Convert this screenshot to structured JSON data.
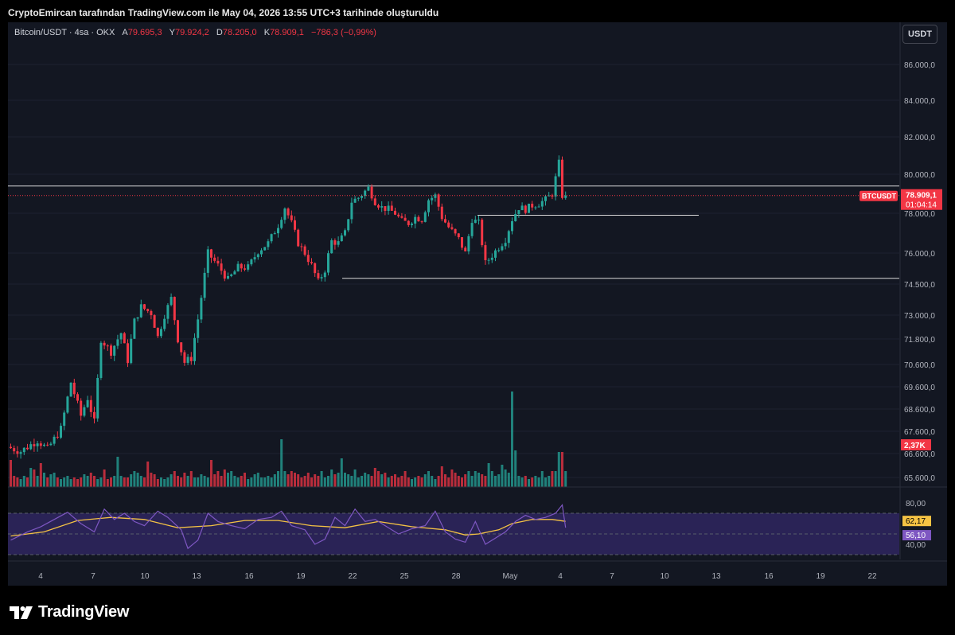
{
  "caption": "CryptoEmircan tarafından TradingView.com ile May 04, 2026 13:55 UTC+3 tarihinde oluşturuldu",
  "legend": {
    "symbol": "Bitcoin/USDT · 4sa · OKX",
    "open_label": "A",
    "open": "79.695,3",
    "high_label": "Y",
    "high": "79.924,2",
    "low_label": "D",
    "low": "78.205,0",
    "close_label": "K",
    "close": "78.909,1",
    "change": "−786,3 (−0,99%)"
  },
  "currency_button": "USDT",
  "brand": "TradingView",
  "colors": {
    "background": "#131722",
    "up": "#26a69a",
    "down": "#f23645",
    "rsi": "#7e57c2",
    "rsi_ma": "#f5c344"
  },
  "chart_data": {
    "type": "candlestick",
    "symbol": "BTCUSDT",
    "price_ticks": [
      "86.000,0",
      "84.000,0",
      "82.000,0",
      "80.000,0",
      "78.000,0",
      "76.000,0",
      "74.500,0",
      "73.000,0",
      "71.800,0",
      "70.600,0",
      "69.600,0",
      "68.600,0",
      "67.600,0",
      "66.600,0",
      "65.600,0"
    ],
    "price_tick_values": [
      86000,
      84000,
      82000,
      80000,
      78000,
      76000,
      74500,
      73000,
      71800,
      70600,
      69600,
      68600,
      67600,
      66600,
      65600
    ],
    "x_ticks": [
      "4",
      "7",
      "10",
      "13",
      "16",
      "19",
      "22",
      "25",
      "28",
      "May",
      "4",
      "7",
      "10",
      "13",
      "16",
      "19",
      "22"
    ],
    "price_label": {
      "name": "BTCUSDT",
      "value": "78.909,1",
      "countdown": "01:04:14",
      "price": 78909.1
    },
    "volume_label": "2,37K",
    "horizontal_levels": [
      {
        "price": 79400,
        "span": "full"
      },
      {
        "price": 77900,
        "span": "segment"
      },
      {
        "price": 74780,
        "span": "segment"
      }
    ],
    "path": [
      [
        0,
        66900
      ],
      [
        4,
        66700
      ],
      [
        9,
        67200
      ],
      [
        12,
        66800
      ],
      [
        16,
        67700
      ],
      [
        19,
        69800
      ],
      [
        22,
        68300
      ],
      [
        24,
        69100
      ],
      [
        26,
        68000
      ],
      [
        28,
        71800
      ],
      [
        31,
        71200
      ],
      [
        34,
        72100
      ],
      [
        36,
        70800
      ],
      [
        38,
        72700
      ],
      [
        40,
        73400
      ],
      [
        43,
        73100
      ],
      [
        45,
        71900
      ],
      [
        47,
        73000
      ],
      [
        49,
        73800
      ],
      [
        51,
        71800
      ],
      [
        53,
        70700
      ],
      [
        55,
        70900
      ],
      [
        57,
        72800
      ],
      [
        60,
        76000
      ],
      [
        63,
        75400
      ],
      [
        66,
        74700
      ],
      [
        69,
        75300
      ],
      [
        72,
        75300
      ],
      [
        75,
        76100
      ],
      [
        78,
        76500
      ],
      [
        81,
        77400
      ],
      [
        83,
        78300
      ],
      [
        85,
        77500
      ],
      [
        87,
        76500
      ],
      [
        89,
        76000
      ],
      [
        91,
        75400
      ],
      [
        93,
        74600
      ],
      [
        95,
        75200
      ],
      [
        97,
        76600
      ],
      [
        99,
        76500
      ],
      [
        101,
        77000
      ],
      [
        103,
        78600
      ],
      [
        105,
        78800
      ],
      [
        108,
        79300
      ],
      [
        110,
        78600
      ],
      [
        112,
        78300
      ],
      [
        114,
        78200
      ],
      [
        116,
        78000
      ],
      [
        118,
        77600
      ],
      [
        120,
        77500
      ],
      [
        122,
        77800
      ],
      [
        124,
        77700
      ],
      [
        126,
        78700
      ],
      [
        128,
        78900
      ],
      [
        130,
        77800
      ],
      [
        132,
        77300
      ],
      [
        135,
        76700
      ],
      [
        137,
        76000
      ],
      [
        139,
        77700
      ],
      [
        141,
        77500
      ],
      [
        143,
        75500
      ],
      [
        145,
        75900
      ],
      [
        147,
        76300
      ],
      [
        149,
        76700
      ],
      [
        151,
        77700
      ],
      [
        153,
        78300
      ],
      [
        155,
        78200
      ],
      [
        157,
        78400
      ],
      [
        159,
        78500
      ],
      [
        161,
        78700
      ],
      [
        163,
        79000
      ],
      [
        165,
        80600
      ],
      [
        166,
        78909
      ]
    ],
    "volume_values": [
      1.7,
      0.7,
      0.6,
      0.5,
      0.7,
      0.6,
      1.2,
      1.1,
      0.7,
      1.5,
      0.9,
      0.6,
      0.8,
      0.9,
      0.6,
      0.5,
      0.6,
      0.7,
      0.5,
      0.6,
      0.5,
      0.6,
      0.8,
      0.7,
      0.9,
      0.7,
      0.5,
      0.6,
      1.1,
      0.5,
      0.6,
      0.7,
      1.9,
      0.7,
      0.6,
      0.6,
      0.8,
      1.0,
      0.9,
      0.7,
      0.6,
      1.6,
      0.9,
      0.8,
      0.5,
      0.6,
      0.5,
      0.6,
      0.8,
      1.0,
      0.7,
      0.6,
      0.9,
      0.7,
      1.0,
      0.6,
      0.6,
      0.8,
      0.7,
      0.6,
      1.7,
      0.8,
      1.0,
      0.7,
      1.1,
      0.9,
      1.0,
      0.7,
      0.6,
      0.7,
      0.9,
      0.5,
      0.6,
      0.8,
      0.9,
      0.6,
      0.6,
      0.7,
      0.6,
      0.8,
      1.0,
      3.0,
      1.0,
      0.8,
      1.0,
      0.9,
      0.8,
      0.6,
      0.7,
      0.9,
      0.6,
      0.8,
      0.7,
      1.0,
      0.6,
      0.7,
      1.1,
      0.8,
      0.9,
      1.8,
      0.9,
      0.8,
      0.7,
      1.1,
      0.6,
      0.7,
      0.9,
      0.8,
      0.7,
      1.2,
      1.0,
      0.8,
      0.9,
      0.6,
      0.7,
      0.8,
      0.6,
      0.7,
      1.0,
      0.6,
      0.5,
      0.6,
      0.7,
      0.6,
      0.8,
      1.0,
      0.7,
      0.5,
      0.7,
      1.3,
      0.8,
      0.6,
      1.1,
      0.9,
      0.7,
      0.6,
      0.8,
      1.0,
      0.7,
      1.0,
      0.9,
      0.8,
      0.7,
      1.5,
      1.0,
      0.7,
      0.8,
      1.4,
      1.1,
      0.9,
      6.0,
      2.3,
      0.7,
      0.6,
      0.7,
      0.5,
      0.6,
      0.7,
      0.6,
      1.0,
      0.6,
      0.7,
      1.0,
      1.0,
      2.2,
      2.2,
      1.0
    ],
    "rsi": {
      "ticks": [
        "80,00",
        "40,00"
      ],
      "tick_values": [
        80,
        40
      ],
      "bands": [
        70,
        30
      ],
      "rsi_label": "56,10",
      "rsi_ma_label": "62,17",
      "rsi_path": [
        [
          0,
          44
        ],
        [
          5,
          52
        ],
        [
          9,
          57
        ],
        [
          13,
          64
        ],
        [
          17,
          71
        ],
        [
          21,
          60
        ],
        [
          25,
          52
        ],
        [
          28,
          74
        ],
        [
          31,
          64
        ],
        [
          34,
          70
        ],
        [
          37,
          62
        ],
        [
          40,
          58
        ],
        [
          44,
          72
        ],
        [
          47,
          66
        ],
        [
          51,
          54
        ],
        [
          53,
          36
        ],
        [
          56,
          44
        ],
        [
          59,
          70
        ],
        [
          62,
          62
        ],
        [
          66,
          58
        ],
        [
          70,
          55
        ],
        [
          74,
          64
        ],
        [
          78,
          66
        ],
        [
          81,
          72
        ],
        [
          84,
          58
        ],
        [
          88,
          54
        ],
        [
          91,
          40
        ],
        [
          94,
          45
        ],
        [
          97,
          66
        ],
        [
          100,
          58
        ],
        [
          103,
          74
        ],
        [
          106,
          62
        ],
        [
          109,
          64
        ],
        [
          112,
          58
        ],
        [
          116,
          50
        ],
        [
          120,
          55
        ],
        [
          124,
          58
        ],
        [
          127,
          72
        ],
        [
          130,
          52
        ],
        [
          133,
          45
        ],
        [
          136,
          42
        ],
        [
          139,
          62
        ],
        [
          142,
          40
        ],
        [
          145,
          46
        ],
        [
          148,
          52
        ],
        [
          151,
          62
        ],
        [
          154,
          68
        ],
        [
          157,
          64
        ],
        [
          160,
          66
        ],
        [
          163,
          70
        ],
        [
          165,
          78
        ],
        [
          166,
          56.1
        ]
      ],
      "ma_path": [
        [
          0,
          48
        ],
        [
          10,
          52
        ],
        [
          20,
          63
        ],
        [
          30,
          66
        ],
        [
          40,
          64
        ],
        [
          50,
          56
        ],
        [
          60,
          58
        ],
        [
          70,
          63
        ],
        [
          80,
          63
        ],
        [
          90,
          58
        ],
        [
          100,
          56
        ],
        [
          110,
          62
        ],
        [
          120,
          57
        ],
        [
          130,
          54
        ],
        [
          136,
          49
        ],
        [
          140,
          50
        ],
        [
          146,
          54
        ],
        [
          150,
          60
        ],
        [
          156,
          64
        ],
        [
          162,
          64
        ],
        [
          166,
          62.17
        ]
      ]
    }
  }
}
